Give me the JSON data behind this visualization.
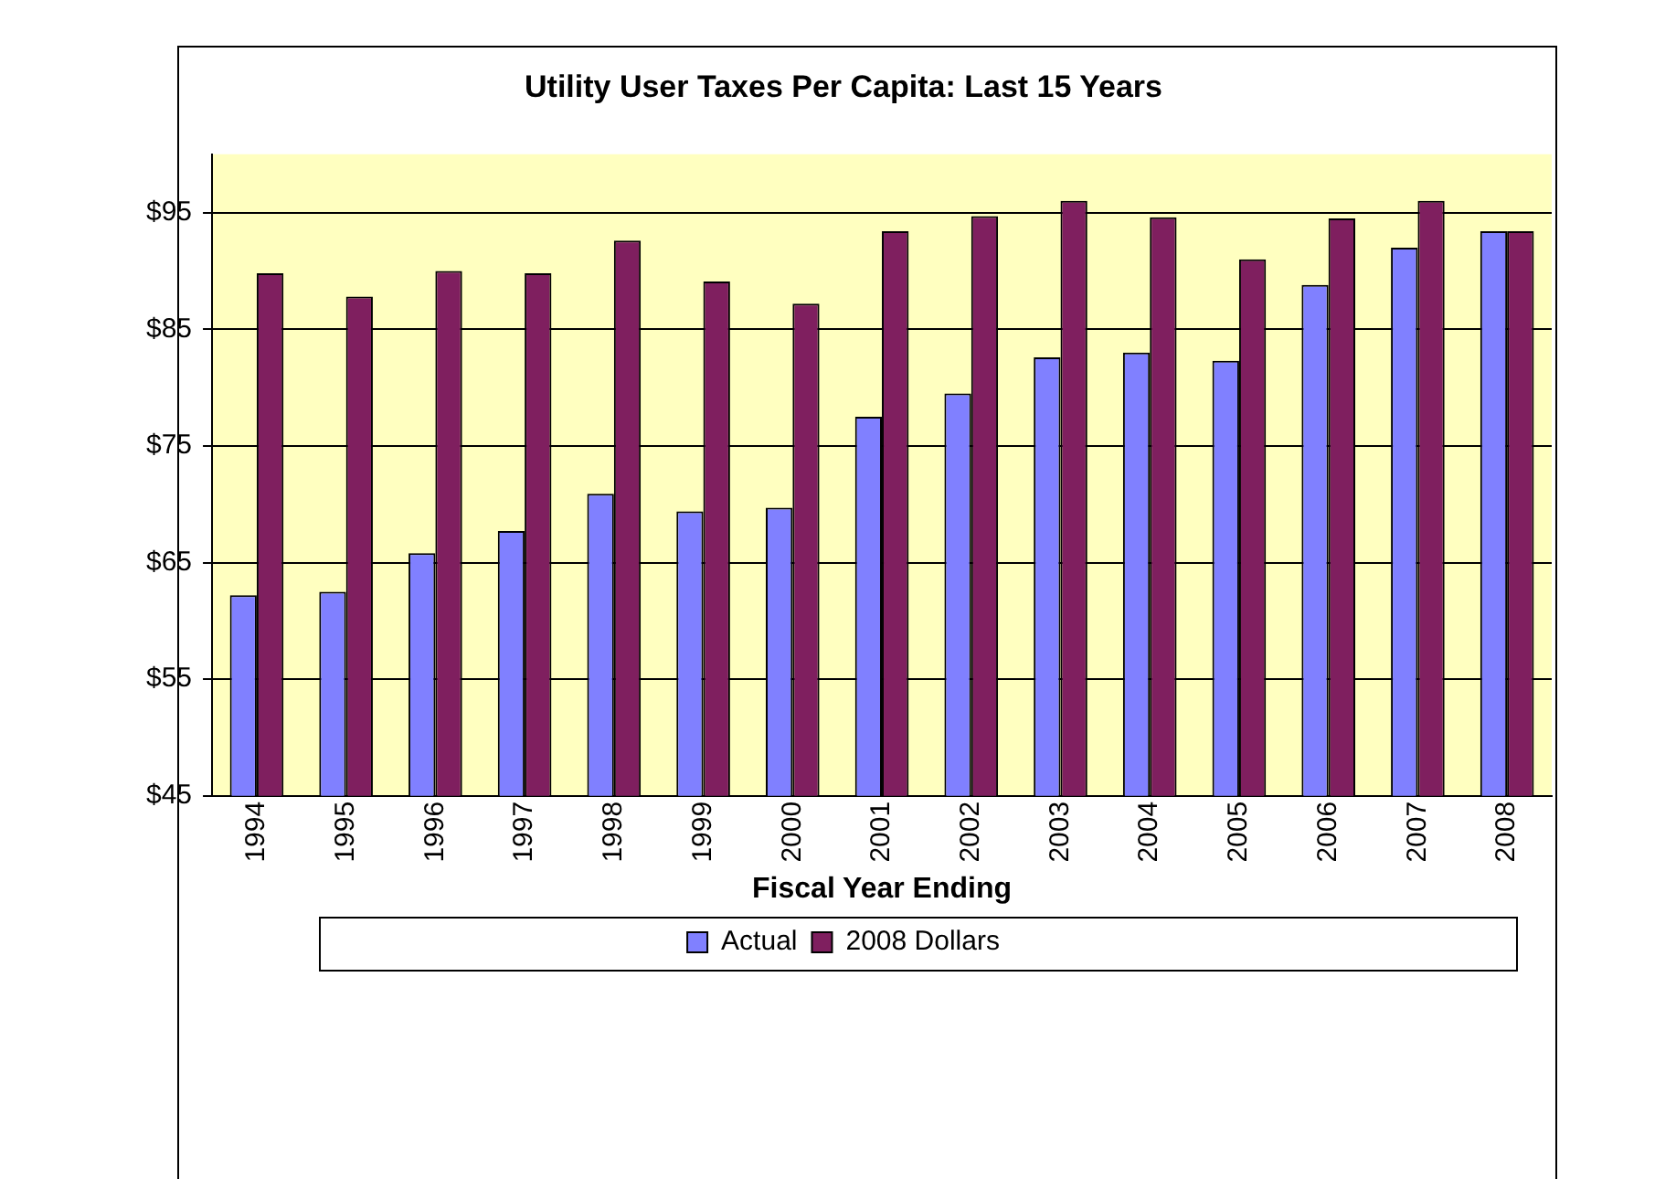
{
  "chart_data": {
    "type": "bar",
    "title": "Utility User Taxes Per Capita: Last 15 Years",
    "xlabel": "Fiscal Year Ending",
    "categories": [
      "1994",
      "1995",
      "1996",
      "1997",
      "1998",
      "1999",
      "2000",
      "2001",
      "2002",
      "2003",
      "2004",
      "2005",
      "2006",
      "2007",
      "2008"
    ],
    "series": [
      {
        "name": "Actual",
        "color": "#8080ff",
        "values": [
          62.2,
          62.5,
          65.8,
          67.7,
          70.9,
          69.4,
          69.7,
          77.5,
          79.5,
          82.6,
          83.0,
          82.3,
          88.8,
          92.0,
          93.4
        ]
      },
      {
        "name": "2008 Dollars",
        "color": "#7f1f5f",
        "values": [
          89.8,
          87.8,
          90.0,
          89.8,
          92.6,
          89.1,
          87.2,
          93.4,
          94.7,
          96.0,
          94.6,
          91.0,
          94.5,
          96.0,
          93.4
        ]
      }
    ],
    "ylim": [
      45,
      100
    ],
    "yticks": [
      {
        "value": 45,
        "label": "$45"
      },
      {
        "value": 55,
        "label": "$55"
      },
      {
        "value": 65,
        "label": "$65"
      },
      {
        "value": 75,
        "label": "$75"
      },
      {
        "value": 85,
        "label": "$85"
      },
      {
        "value": 95,
        "label": "$95"
      }
    ],
    "grid": "y",
    "legend": "bottom"
  }
}
